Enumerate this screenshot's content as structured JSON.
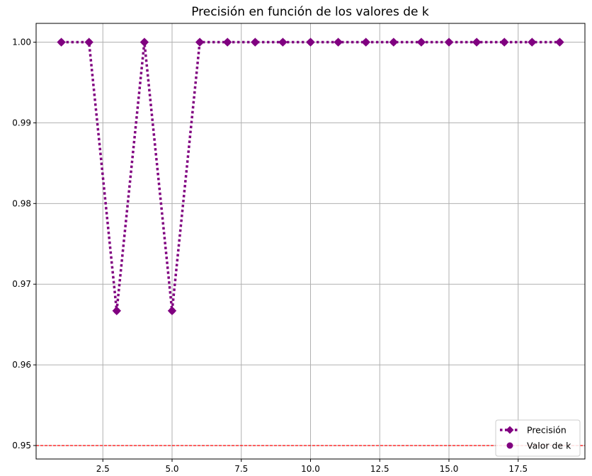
{
  "chart_data": {
    "type": "line",
    "title": "Precisión en función de los valores de k",
    "xlabel": "",
    "ylabel": "",
    "x": [
      1,
      2,
      3,
      4,
      5,
      6,
      7,
      8,
      9,
      10,
      11,
      12,
      13,
      14,
      15,
      16,
      17,
      18,
      19
    ],
    "series": [
      {
        "name": "Precisión",
        "values": [
          1.0,
          1.0,
          0.9667,
          1.0,
          0.9667,
          1.0,
          1.0,
          1.0,
          1.0,
          1.0,
          1.0,
          1.0,
          1.0,
          1.0,
          1.0,
          1.0,
          1.0,
          1.0,
          1.0
        ],
        "color": "#800080",
        "linestyle": "dotted",
        "marker": "diamond"
      },
      {
        "name": "Valor de k",
        "values": [
          1.0,
          1.0,
          0.9667,
          1.0,
          0.9667,
          1.0,
          1.0,
          1.0,
          1.0,
          1.0,
          1.0,
          1.0,
          1.0,
          1.0,
          1.0,
          1.0,
          1.0,
          1.0,
          1.0
        ],
        "color": "#800080",
        "marker": "circle"
      }
    ],
    "reference_line": {
      "y": 0.95,
      "color": "#ff0000",
      "linestyle": "dashed"
    },
    "xlim": [
      0.09,
      19.91
    ],
    "ylim": [
      0.94833,
      1.00233
    ],
    "x_ticks": [
      2.5,
      5.0,
      7.5,
      10.0,
      12.5,
      15.0,
      17.5
    ],
    "x_tick_labels": [
      "2.5",
      "5.0",
      "7.5",
      "10.0",
      "12.5",
      "15.0",
      "17.5"
    ],
    "y_ticks": [
      0.95,
      0.96,
      0.97,
      0.98,
      0.99,
      1.0
    ],
    "y_tick_labels": [
      "0.95",
      "0.96",
      "0.97",
      "0.98",
      "0.99",
      "1.00"
    ],
    "grid": true,
    "grid_color": "#b0b0b0",
    "legend_position": "lower-right"
  }
}
